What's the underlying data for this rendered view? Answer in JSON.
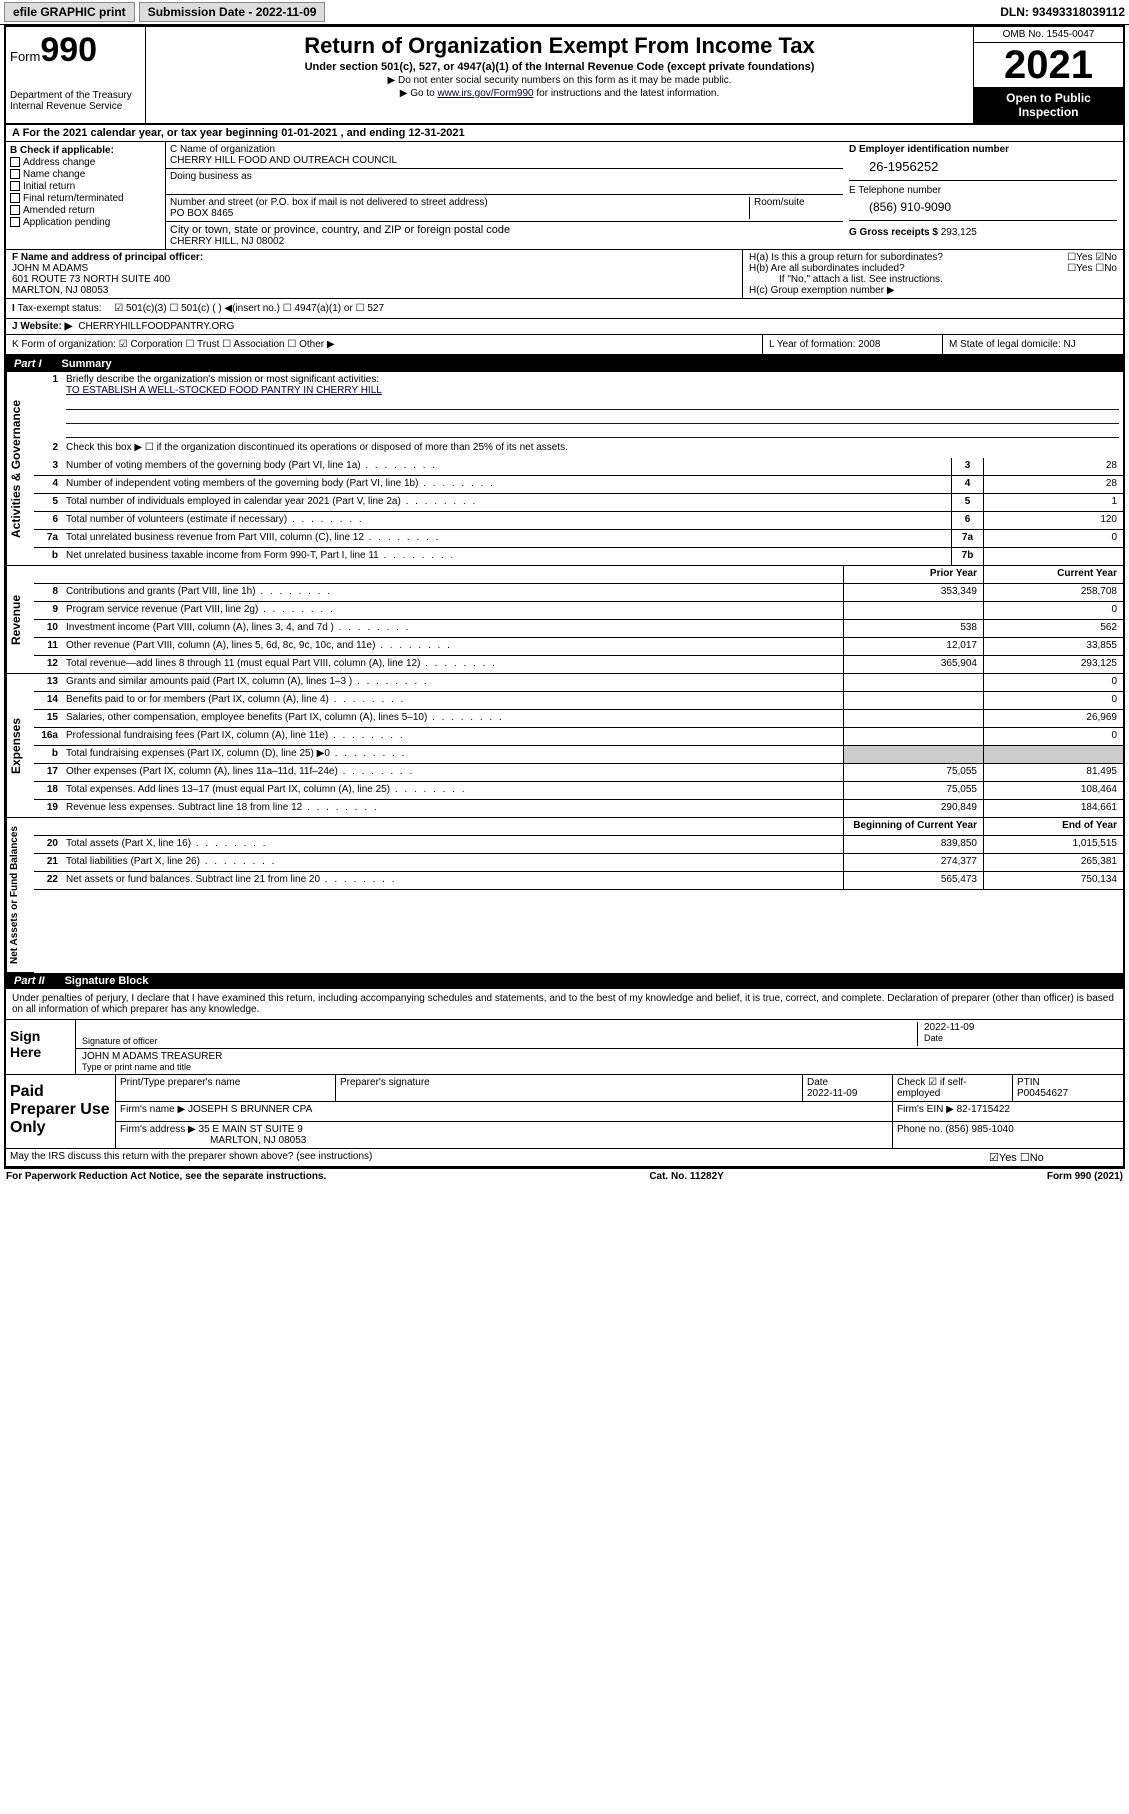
{
  "topbar": {
    "efile": "efile GRAPHIC print",
    "submission_label": "Submission Date - 2022-11-09",
    "dln_label": "DLN: 93493318039112"
  },
  "header": {
    "form_label": "Form",
    "form_number": "990",
    "dept": "Department of the Treasury Internal Revenue Service",
    "title": "Return of Organization Exempt From Income Tax",
    "subtitle": "Under section 501(c), 527, or 4947(a)(1) of the Internal Revenue Code (except private foundations)",
    "note1": "▶ Do not enter social security numbers on this form as it may be made public.",
    "note2_pre": "▶ Go to ",
    "note2_link": "www.irs.gov/Form990",
    "note2_post": " for instructions and the latest information.",
    "omb": "OMB No. 1545-0047",
    "year": "2021",
    "inspect": "Open to Public Inspection"
  },
  "period": {
    "text": "A For the 2021 calendar year, or tax year beginning 01-01-2021     , and ending 12-31-2021"
  },
  "block_b": {
    "label": "B Check if applicable:",
    "items": [
      "Address change",
      "Name change",
      "Initial return",
      "Final return/terminated",
      "Amended return",
      "Application pending"
    ]
  },
  "block_c": {
    "name_label": "C Name of organization",
    "name": "CHERRY HILL FOOD AND OUTREACH COUNCIL",
    "dba_label": "Doing business as",
    "addr_label": "Number and street (or P.O. box if mail is not delivered to street address)",
    "room_label": "Room/suite",
    "addr": "PO BOX 8465",
    "city_label": "City or town, state or province, country, and ZIP or foreign postal code",
    "city": "CHERRY HILL, NJ  08002"
  },
  "block_d": {
    "label": "D Employer identification number",
    "ein": "26-1956252",
    "phone_label": "E Telephone number",
    "phone": "(856) 910-9090",
    "gross_label": "G Gross receipts $ ",
    "gross": "293,125"
  },
  "section_f": {
    "label": "F  Name and address of principal officer:",
    "name": "JOHN M ADAMS",
    "addr1": "601 ROUTE 73 NORTH SUITE 400",
    "addr2": "MARLTON, NJ  08053",
    "ha": "H(a)  Is this a group return for subordinates?",
    "ha_ans": "☐Yes ☑No",
    "hb": "H(b)  Are all subordinates included?",
    "hb_ans": "☐Yes ☐No",
    "hb_note": "If \"No,\" attach a list. See instructions.",
    "hc": "H(c)  Group exemption number ▶"
  },
  "tax_status": {
    "label": "Tax-exempt status:",
    "opts": "☑ 501(c)(3)    ☐ 501(c) (  ) ◀(insert no.)    ☐ 4947(a)(1) or   ☐ 527"
  },
  "website": {
    "label": "J  Website: ▶",
    "value": "CHERRYHILLFOODPANTRY.ORG"
  },
  "k_row": {
    "k": "K Form of organization:  ☑ Corporation  ☐ Trust  ☐ Association  ☐ Other ▶",
    "l": "L Year of formation: 2008",
    "m": "M State of legal domicile: NJ"
  },
  "part1": {
    "label": "Part I",
    "title": "Summary",
    "side_gov": "Activities & Governance",
    "side_rev": "Revenue",
    "side_exp": "Expenses",
    "side_net": "Net Assets or Fund Balances",
    "line1_label": "Briefly describe the organization's mission or most significant activities:",
    "line1_text": "TO ESTABLISH A WELL-STOCKED FOOD PANTRY IN CHERRY HILL",
    "line2": "Check this box ▶ ☐  if the organization discontinued its operations or disposed of more than 25% of its net assets.",
    "prior_hdr": "Prior Year",
    "current_hdr": "Current Year",
    "begin_hdr": "Beginning of Current Year",
    "end_hdr": "End of Year",
    "lines_gov": [
      {
        "n": "3",
        "d": "Number of voting members of the governing body (Part VI, line 1a)",
        "b": "3",
        "v": "28"
      },
      {
        "n": "4",
        "d": "Number of independent voting members of the governing body (Part VI, line 1b)",
        "b": "4",
        "v": "28"
      },
      {
        "n": "5",
        "d": "Total number of individuals employed in calendar year 2021 (Part V, line 2a)",
        "b": "5",
        "v": "1"
      },
      {
        "n": "6",
        "d": "Total number of volunteers (estimate if necessary)",
        "b": "6",
        "v": "120"
      },
      {
        "n": "7a",
        "d": "Total unrelated business revenue from Part VIII, column (C), line 12",
        "b": "7a",
        "v": "0"
      },
      {
        "n": "b",
        "d": "Net unrelated business taxable income from Form 990-T, Part I, line 11",
        "b": "7b",
        "v": ""
      }
    ],
    "lines_rev": [
      {
        "n": "8",
        "d": "Contributions and grants (Part VIII, line 1h)",
        "p": "353,349",
        "c": "258,708"
      },
      {
        "n": "9",
        "d": "Program service revenue (Part VIII, line 2g)",
        "p": "",
        "c": "0"
      },
      {
        "n": "10",
        "d": "Investment income (Part VIII, column (A), lines 3, 4, and 7d )",
        "p": "538",
        "c": "562"
      },
      {
        "n": "11",
        "d": "Other revenue (Part VIII, column (A), lines 5, 6d, 8c, 9c, 10c, and 11e)",
        "p": "12,017",
        "c": "33,855"
      },
      {
        "n": "12",
        "d": "Total revenue—add lines 8 through 11 (must equal Part VIII, column (A), line 12)",
        "p": "365,904",
        "c": "293,125"
      }
    ],
    "lines_exp": [
      {
        "n": "13",
        "d": "Grants and similar amounts paid (Part IX, column (A), lines 1–3 )",
        "p": "",
        "c": "0"
      },
      {
        "n": "14",
        "d": "Benefits paid to or for members (Part IX, column (A), line 4)",
        "p": "",
        "c": "0"
      },
      {
        "n": "15",
        "d": "Salaries, other compensation, employee benefits (Part IX, column (A), lines 5–10)",
        "p": "",
        "c": "26,969"
      },
      {
        "n": "16a",
        "d": "Professional fundraising fees (Part IX, column (A), line 11e)",
        "p": "",
        "c": "0"
      },
      {
        "n": "b",
        "d": "Total fundraising expenses (Part IX, column (D), line 25) ▶0",
        "p": "grey",
        "c": "grey"
      },
      {
        "n": "17",
        "d": "Other expenses (Part IX, column (A), lines 11a–11d, 11f–24e)",
        "p": "75,055",
        "c": "81,495"
      },
      {
        "n": "18",
        "d": "Total expenses. Add lines 13–17 (must equal Part IX, column (A), line 25)",
        "p": "75,055",
        "c": "108,464"
      },
      {
        "n": "19",
        "d": "Revenue less expenses. Subtract line 18 from line 12",
        "p": "290,849",
        "c": "184,661"
      }
    ],
    "lines_net": [
      {
        "n": "20",
        "d": "Total assets (Part X, line 16)",
        "p": "839,850",
        "c": "1,015,515"
      },
      {
        "n": "21",
        "d": "Total liabilities (Part X, line 26)",
        "p": "274,377",
        "c": "265,381"
      },
      {
        "n": "22",
        "d": "Net assets or fund balances. Subtract line 21 from line 20",
        "p": "565,473",
        "c": "750,134"
      }
    ]
  },
  "part2": {
    "label": "Part II",
    "title": "Signature Block",
    "perjury": "Under penalties of perjury, I declare that I have examined this return, including accompanying schedules and statements, and to the best of my knowledge and belief, it is true, correct, and complete. Declaration of preparer (other than officer) is based on all information of which preparer has any knowledge.",
    "sign_here": "Sign Here",
    "sig_officer": "Signature of officer",
    "sig_date": "2022-11-09",
    "date_label": "Date",
    "officer_name": "JOHN M ADAMS TREASURER",
    "type_label": "Type or print name and title",
    "paid": "Paid Preparer Use Only",
    "prep_name_label": "Print/Type preparer's name",
    "prep_sig_label": "Preparer's signature",
    "prep_date_label": "Date",
    "prep_date": "2022-11-09",
    "check_label": "Check ☑ if self-employed",
    "ptin_label": "PTIN",
    "ptin": "P00454627",
    "firm_name_label": "Firm's name    ▶",
    "firm_name": "JOSEPH S BRUNNER CPA",
    "firm_ein_label": "Firm's EIN ▶",
    "firm_ein": "82-1715422",
    "firm_addr_label": "Firm's address ▶",
    "firm_addr1": "35 E MAIN ST SUITE 9",
    "firm_addr2": "MARLTON, NJ  08053",
    "firm_phone_label": "Phone no.",
    "firm_phone": "(856) 985-1040",
    "discuss": "May the IRS discuss this return with the preparer shown above? (see instructions)",
    "discuss_ans": "☑Yes  ☐No"
  },
  "footer": {
    "left": "For Paperwork Reduction Act Notice, see the separate instructions.",
    "mid": "Cat. No. 11282Y",
    "right": "Form 990 (2021)"
  }
}
